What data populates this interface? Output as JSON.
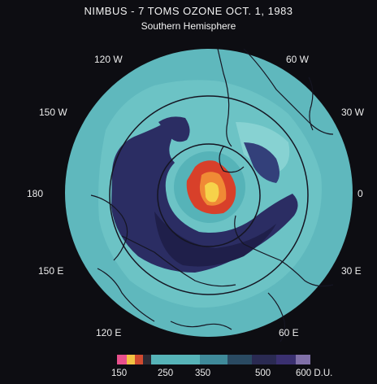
{
  "title": "NIMBUS - 7 TOMS OZONE OCT. 1, 1983",
  "subtitle": "Southern Hemisphere",
  "longitudes": [
    "120 W",
    "60 W",
    "150 W",
    "30 W",
    "180",
    "0",
    "150 E",
    "30 E",
    "120 E",
    "60 E"
  ],
  "legend": {
    "labels": [
      "150",
      "250",
      "350",
      "500",
      "600 D.U."
    ],
    "colors": [
      "#e8508c",
      "#f2c243",
      "#d04a30",
      "#2c2a33",
      "#56b3b8",
      "#3f8a9a",
      "#2a4a62",
      "#2a2a52",
      "#3a3070",
      "#8070a8"
    ]
  },
  "colors": {
    "background": "#0d0d12",
    "ocean_cyan": "#5fb8bd",
    "light_cyan": "#7fcfcf",
    "navy": "#2b2d63",
    "dark_navy": "#1f1f4a",
    "hole_red": "#d8402a",
    "hole_orange": "#f08a35",
    "hole_yellow": "#f6d24a"
  }
}
